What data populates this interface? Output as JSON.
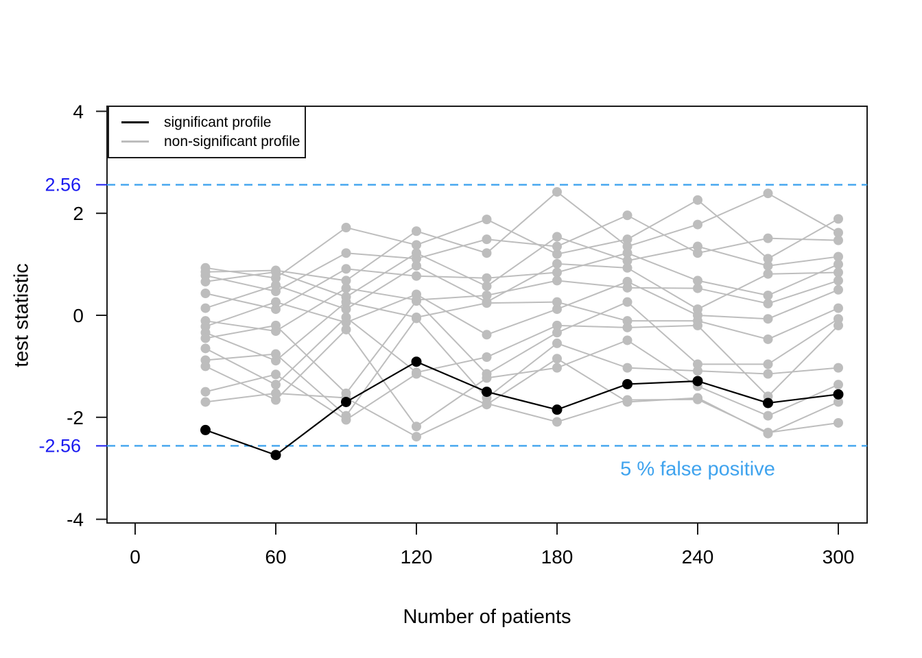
{
  "figure": {
    "xlabel": "Number of patients",
    "ylabel": "test statistic",
    "annotation": "5 % false positive",
    "threshold_upper_label": "2.56",
    "threshold_lower_label": "-2.56",
    "legend": [
      {
        "label": "significant profile",
        "color": "#000000"
      },
      {
        "label": "non-significant profile",
        "color": "#bdbdbd"
      }
    ],
    "colors": {
      "significant": "#000000",
      "non_significant": "#bdbdbd",
      "threshold_line": "#3fa3ee",
      "threshold_tick_label": "#1a1af0",
      "annotation_text": "#3fa3ee",
      "axis": "#1a1a1a"
    }
  },
  "chart_data": {
    "type": "line",
    "title": "",
    "xlabel": "Number of patients",
    "ylabel": "test statistic",
    "x": [
      30,
      60,
      90,
      120,
      150,
      180,
      210,
      240,
      270,
      300
    ],
    "x_ticks": [
      0,
      60,
      120,
      180,
      240,
      300
    ],
    "y_ticks": [
      4,
      2,
      0,
      -2,
      -4
    ],
    "xlim": [
      -12,
      312
    ],
    "ylim": [
      -4.07,
      4.15
    ],
    "grid": false,
    "legend_position": "top-left",
    "thresholds": {
      "values": [
        2.56,
        -2.56
      ],
      "style": "dashed",
      "annotation": "5 % false positive"
    },
    "series": [
      {
        "name": "significant profile",
        "role": "significant",
        "values": [
          -2.25,
          -2.74,
          -1.7,
          -0.91,
          -1.5,
          -1.85,
          -1.35,
          -1.29,
          -1.72,
          -1.55
        ]
      },
      {
        "name": "non-significant profile 1",
        "role": "non-significant",
        "values": [
          0.93,
          0.73,
          1.72,
          1.38,
          1.88,
          1.2,
          1.49,
          2.26,
          1.11,
          1.89
        ]
      },
      {
        "name": "non-significant profile 2",
        "role": "non-significant",
        "values": [
          0.85,
          0.88,
          0.68,
          1.65,
          1.22,
          2.42,
          1.35,
          1.78,
          2.39,
          1.62
        ]
      },
      {
        "name": "non-significant profile 3",
        "role": "non-significant",
        "values": [
          0.78,
          0.47,
          1.22,
          1.11,
          1.49,
          1.35,
          1.96,
          1.22,
          1.51,
          1.47
        ]
      },
      {
        "name": "non-significant profile 4",
        "role": "non-significant",
        "values": [
          0.66,
          0.85,
          0.36,
          1.22,
          0.57,
          1.54,
          1.07,
          1.35,
          0.97,
          1.15
        ]
      },
      {
        "name": "non-significant profile 5",
        "role": "non-significant",
        "values": [
          0.43,
          0.12,
          0.91,
          0.77,
          0.73,
          0.84,
          1.22,
          0.68,
          0.39,
          1.0
        ]
      },
      {
        "name": "non-significant profile 6",
        "role": "non-significant",
        "values": [
          0.14,
          0.59,
          0.12,
          0.97,
          0.26,
          1.01,
          0.93,
          0.12,
          0.81,
          0.84
        ]
      },
      {
        "name": "non-significant profile 7",
        "role": "non-significant",
        "values": [
          -0.11,
          -0.31,
          0.53,
          0.3,
          0.39,
          0.68,
          0.54,
          0.53,
          0.23,
          0.68
        ]
      },
      {
        "name": "non-significant profile 8",
        "role": "non-significant",
        "values": [
          -0.22,
          0.26,
          -0.14,
          0.41,
          -0.38,
          0.12,
          0.66,
          0.0,
          -0.07,
          0.5
        ]
      },
      {
        "name": "non-significant profile 9",
        "role": "non-significant",
        "values": [
          -0.34,
          -0.89,
          0.26,
          -0.04,
          0.24,
          0.26,
          -0.11,
          -0.11,
          -0.47,
          0.14
        ]
      },
      {
        "name": "non-significant profile 10",
        "role": "non-significant",
        "values": [
          -0.45,
          -0.2,
          -1.53,
          0.28,
          -1.15,
          -0.34,
          0.26,
          -0.96,
          -0.96,
          -0.07
        ]
      },
      {
        "name": "non-significant profile 11",
        "role": "non-significant",
        "values": [
          -0.65,
          -1.36,
          -0.04,
          -1.12,
          -0.82,
          -0.2,
          -0.24,
          -0.2,
          -1.59,
          -0.2
        ]
      },
      {
        "name": "non-significant profile 12",
        "role": "non-significant",
        "values": [
          -0.88,
          -0.76,
          -1.97,
          -0.06,
          -1.62,
          -0.55,
          -1.03,
          -1.09,
          -1.15,
          -1.03
        ]
      },
      {
        "name": "non-significant profile 13",
        "role": "non-significant",
        "values": [
          -1.0,
          -1.66,
          -0.28,
          -2.18,
          -1.23,
          -1.03,
          -0.49,
          -1.39,
          -1.97,
          -1.36
        ]
      },
      {
        "name": "non-significant profile 14",
        "role": "non-significant",
        "values": [
          -1.5,
          -1.16,
          -2.05,
          -1.15,
          -1.75,
          -0.85,
          -1.7,
          -1.62,
          -2.32,
          -1.7
        ]
      },
      {
        "name": "non-significant profile 15",
        "role": "non-significant",
        "values": [
          -1.7,
          -1.53,
          -1.62,
          -2.38,
          -1.73,
          -2.09,
          -1.66,
          -1.65,
          -2.3,
          -2.11
        ]
      }
    ]
  }
}
